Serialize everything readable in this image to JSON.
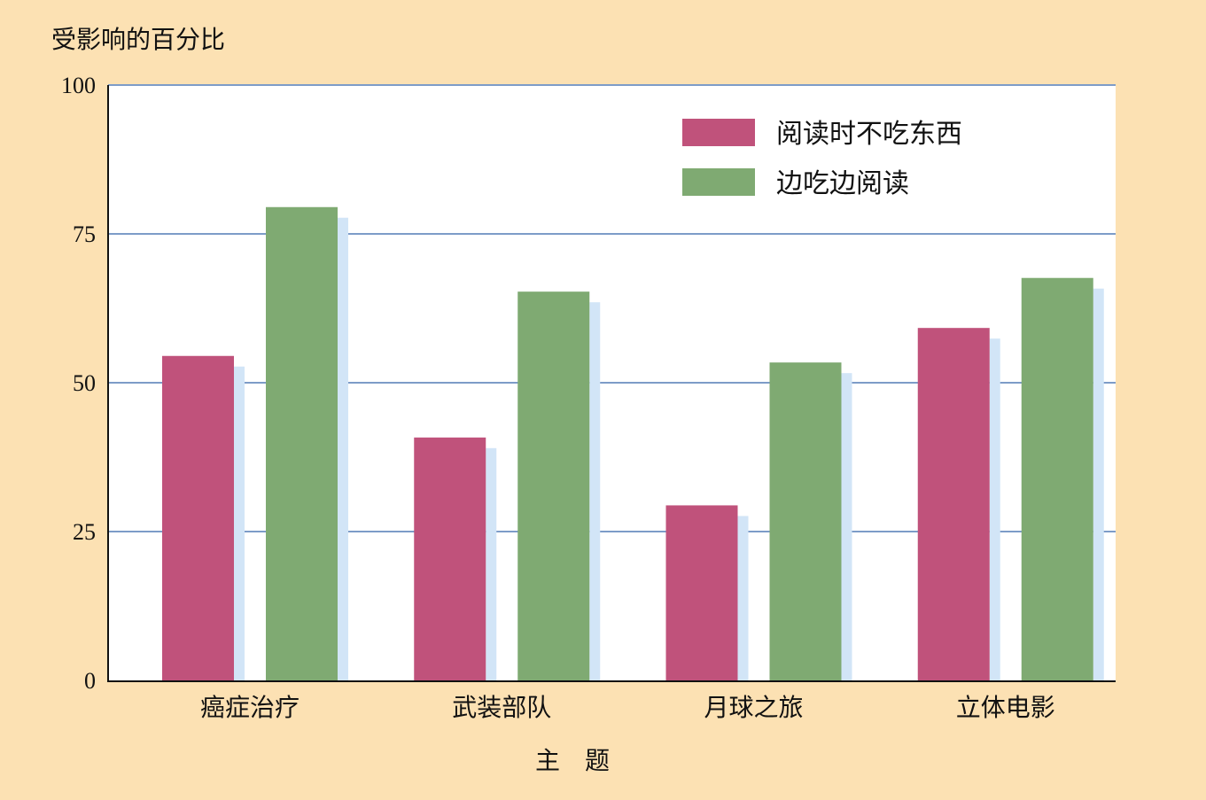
{
  "chart_data": {
    "type": "bar",
    "ylabel": "受影响的百分比",
    "xlabel": "主　题",
    "ylim": [
      0,
      100
    ],
    "yticks": [
      0,
      25,
      50,
      75,
      100
    ],
    "grid": true,
    "legend_position": "top-right",
    "categories": [
      "癌症治疗",
      "武装部队",
      "月球之旅",
      "立体电影"
    ],
    "series": [
      {
        "name": "阅读时不吃东西",
        "color": "#c0527b",
        "values": [
          54.5,
          40.8,
          29.4,
          59.2
        ]
      },
      {
        "name": "边吃边阅读",
        "color": "#7faa72",
        "values": [
          79.5,
          65.3,
          53.4,
          67.6
        ]
      }
    ],
    "colors": {
      "background": "#fce1b3",
      "plot_area": "#ffffff",
      "grid": "#7d9cc8",
      "shadow": "#d2e5f7",
      "axis": "#111111"
    }
  }
}
